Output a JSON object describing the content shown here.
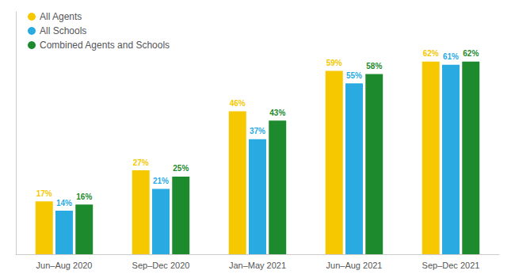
{
  "chart_data": {
    "type": "bar",
    "categories": [
      "Jun–Aug 2020",
      "Sep–Dec 2020",
      "Jan–May 2021",
      "Jun–Aug 2021",
      "Sep–Dec 2021"
    ],
    "series": [
      {
        "name": "All Agents",
        "color": "#F5C800",
        "values": [
          17,
          27,
          46,
          59,
          62
        ],
        "value_labels": [
          "17%",
          "27%",
          "46%",
          "59%",
          "62%"
        ]
      },
      {
        "name": "All Schools",
        "color": "#29ABE2",
        "values": [
          14,
          21,
          37,
          55,
          61
        ],
        "value_labels": [
          "14%",
          "21%",
          "37%",
          "55%",
          "61%"
        ]
      },
      {
        "name": "Combined Agents and Schools",
        "color": "#1E8A2E",
        "values": [
          16,
          25,
          43,
          58,
          62
        ],
        "value_labels": [
          "16%",
          "25%",
          "43%",
          "58%",
          "62%"
        ]
      }
    ],
    "ylim": [
      0,
      78
    ],
    "tick_labels": "x",
    "grid": false,
    "legend": "upper left",
    "data_labels": true
  }
}
